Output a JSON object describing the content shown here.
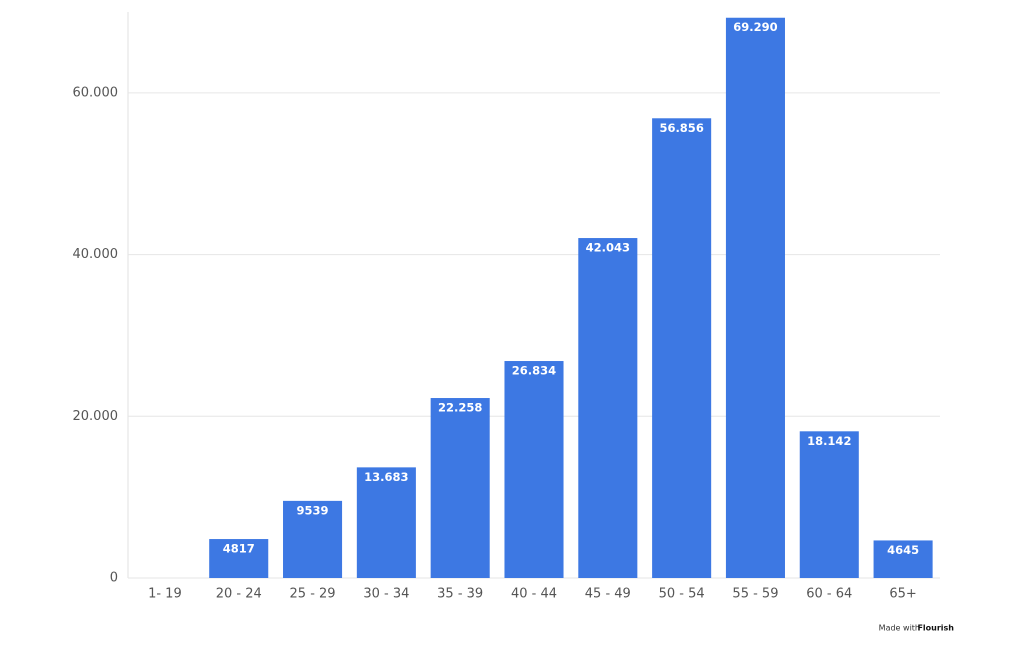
{
  "chart_data": {
    "type": "bar",
    "categories": [
      "1- 19",
      "20 - 24",
      "25 - 29",
      "30 - 34",
      "35 - 39",
      "40 - 44",
      "45 - 49",
      "50 - 54",
      "55 - 59",
      "60 - 64",
      "65+"
    ],
    "values": [
      0,
      4817,
      9539,
      13683,
      22258,
      26834,
      42043,
      56856,
      69290,
      18142,
      4645
    ],
    "value_labels": [
      null,
      "4817",
      "9539",
      "13.683",
      "22.258",
      "26.834",
      "42.043",
      "56.856",
      "69.290",
      "18.142",
      "4645"
    ],
    "color": "#3d78e3",
    "ylim": [
      0,
      70000
    ],
    "yticks": [
      0,
      {
        "value": 20000,
        "label": "20.000"
      },
      {
        "value": 40000,
        "label": "40.000"
      },
      {
        "value": 60000,
        "label": "60.000"
      }
    ],
    "grid": true,
    "footer": {
      "prefix": "Made with",
      "brand": "Flourish"
    }
  }
}
